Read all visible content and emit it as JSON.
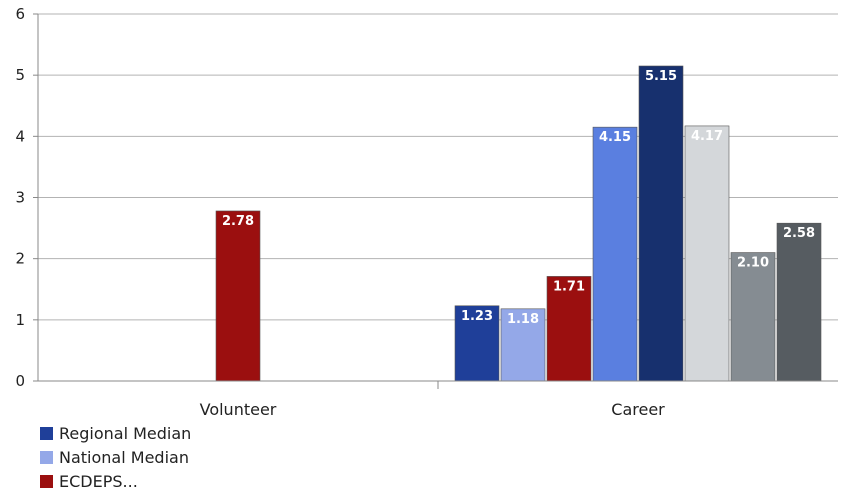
{
  "chart_data": {
    "type": "bar",
    "categories": [
      "Volunteer",
      "Career"
    ],
    "ylim": [
      0,
      6
    ],
    "yticks": [
      0,
      1,
      2,
      3,
      4,
      5,
      6
    ],
    "grid": true,
    "bars": [
      {
        "category": "Volunteer",
        "value": 2.78,
        "label": "2.78",
        "color": "#9b0f0f"
      },
      {
        "category": "Career",
        "value": 1.23,
        "label": "1.23",
        "color": "#1f3f99"
      },
      {
        "category": "Career",
        "value": 1.18,
        "label": "1.18",
        "color": "#94a8e8"
      },
      {
        "category": "Career",
        "value": 1.71,
        "label": "1.71",
        "color": "#9b0f0f"
      },
      {
        "category": "Career",
        "value": 4.15,
        "label": "4.15",
        "color": "#5a7fe0"
      },
      {
        "category": "Career",
        "value": 5.15,
        "label": "5.15",
        "color": "#17306e"
      },
      {
        "category": "Career",
        "value": 4.17,
        "label": "4.17",
        "color": "#d4d7da"
      },
      {
        "category": "Career",
        "value": 2.1,
        "label": "2.10",
        "color": "#858c92"
      },
      {
        "category": "Career",
        "value": 2.58,
        "label": "2.58",
        "color": "#565c61"
      }
    ],
    "legend": [
      {
        "name": "Regional Median",
        "color": "#1f3f99"
      },
      {
        "name": "National Median",
        "color": "#94a8e8"
      },
      {
        "name": "ECDEPS...",
        "color": "#9b0f0f"
      }
    ]
  }
}
